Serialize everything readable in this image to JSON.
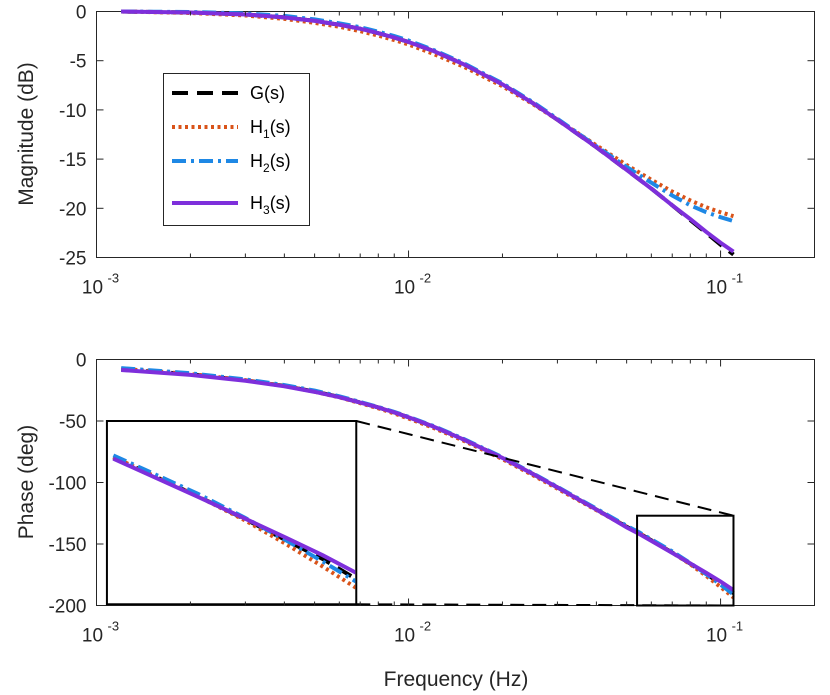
{
  "chart_data": [
    {
      "type": "line",
      "panel": "magnitude",
      "ylabel": "Magnitude (dB)",
      "xscale": "log",
      "xlim": [
        0.001,
        0.2
      ],
      "ylim": [
        -25,
        0
      ],
      "yticks": [
        0,
        -5,
        -10,
        -15,
        -20,
        -25
      ],
      "ytick_labels": [
        "0",
        "-5",
        "-10",
        "-15",
        "-20",
        "-25"
      ],
      "xtick_labels": [
        {
          "base": "10",
          "exp": "-3"
        },
        {
          "base": "10",
          "exp": "-2"
        },
        {
          "base": "10",
          "exp": "-1"
        }
      ],
      "legend": {
        "position": "left",
        "entries": [
          {
            "label": "G(s)",
            "sub": "",
            "suffix": ""
          },
          {
            "label": "H",
            "sub": "1",
            "suffix": "(s)"
          },
          {
            "label": "H",
            "sub": "2",
            "suffix": "(s)"
          },
          {
            "label": "H",
            "sub": "3",
            "suffix": "(s)"
          }
        ]
      },
      "series": [
        {
          "name": "G(s)",
          "color": "#000000",
          "dash": "dash",
          "x": [
            0.0012,
            0.002,
            0.003,
            0.004,
            0.005,
            0.006,
            0.007,
            0.008,
            0.009,
            0.01,
            0.012,
            0.015,
            0.02,
            0.025,
            0.03,
            0.04,
            0.05,
            0.06,
            0.07,
            0.08,
            0.09,
            0.1,
            0.11
          ],
          "y": [
            0,
            -0.1,
            -0.3,
            -0.6,
            -0.95,
            -1.35,
            -1.75,
            -2.2,
            -2.65,
            -3.1,
            -4.0,
            -5.35,
            -7.4,
            -9.3,
            -11.0,
            -13.8,
            -16.1,
            -18.0,
            -19.7,
            -21.2,
            -22.5,
            -23.7,
            -24.7
          ]
        },
        {
          "name": "H1(s)",
          "color": "#D95319",
          "dash": "dot",
          "x": [
            0.0012,
            0.002,
            0.003,
            0.004,
            0.005,
            0.006,
            0.007,
            0.008,
            0.009,
            0.01,
            0.012,
            0.015,
            0.02,
            0.025,
            0.03,
            0.04,
            0.05,
            0.06,
            0.07,
            0.08,
            0.09,
            0.1,
            0.11
          ],
          "y": [
            0,
            -0.15,
            -0.4,
            -0.75,
            -1.15,
            -1.55,
            -2.0,
            -2.45,
            -2.9,
            -3.35,
            -4.3,
            -5.6,
            -7.6,
            -9.4,
            -11.0,
            -13.6,
            -15.6,
            -17.1,
            -18.3,
            -19.2,
            -19.9,
            -20.4,
            -20.8
          ]
        },
        {
          "name": "H2(s)",
          "color": "#1E88E5",
          "dash": "dashdot",
          "x": [
            0.0012,
            0.002,
            0.003,
            0.004,
            0.005,
            0.006,
            0.007,
            0.008,
            0.009,
            0.01,
            0.012,
            0.015,
            0.02,
            0.025,
            0.03,
            0.04,
            0.05,
            0.06,
            0.07,
            0.08,
            0.09,
            0.1,
            0.11
          ],
          "y": [
            0,
            -0.05,
            -0.2,
            -0.45,
            -0.8,
            -1.2,
            -1.6,
            -2.05,
            -2.5,
            -2.95,
            -3.9,
            -5.25,
            -7.3,
            -9.2,
            -10.9,
            -13.7,
            -15.8,
            -17.4,
            -18.7,
            -19.7,
            -20.4,
            -20.9,
            -21.3
          ]
        },
        {
          "name": "H3(s)",
          "color": "#7E2FDB",
          "dash": "solid",
          "x": [
            0.0012,
            0.002,
            0.003,
            0.004,
            0.005,
            0.006,
            0.007,
            0.008,
            0.009,
            0.01,
            0.012,
            0.015,
            0.02,
            0.025,
            0.03,
            0.04,
            0.05,
            0.06,
            0.07,
            0.08,
            0.09,
            0.1,
            0.11
          ],
          "y": [
            0,
            -0.1,
            -0.3,
            -0.6,
            -0.95,
            -1.35,
            -1.75,
            -2.2,
            -2.65,
            -3.1,
            -4.0,
            -5.35,
            -7.4,
            -9.3,
            -11.0,
            -13.8,
            -16.1,
            -18.0,
            -19.7,
            -21.1,
            -22.4,
            -23.5,
            -24.4
          ]
        }
      ]
    },
    {
      "type": "line",
      "panel": "phase",
      "xlabel": "Frequency (Hz)",
      "ylabel": "Phase (deg)",
      "xscale": "log",
      "xlim": [
        0.001,
        0.2
      ],
      "ylim": [
        -200,
        0
      ],
      "yticks": [
        0,
        -50,
        -100,
        -150,
        -200
      ],
      "ytick_labels": [
        "0",
        "-50",
        "-100",
        "-150",
        "-200"
      ],
      "xtick_labels": [
        {
          "base": "10",
          "exp": "-3"
        },
        {
          "base": "10",
          "exp": "-2"
        },
        {
          "base": "10",
          "exp": "-1"
        }
      ],
      "zoom_region": {
        "x": [
          0.054,
          0.11
        ],
        "y": [
          -200,
          -127
        ]
      },
      "inset_region": {
        "x": [
          0.00108,
          0.0068
        ],
        "y": [
          -199,
          -50
        ]
      },
      "series": [
        {
          "name": "G(s)",
          "color": "#000000",
          "dash": "dash",
          "x": [
            0.0012,
            0.002,
            0.003,
            0.004,
            0.005,
            0.006,
            0.007,
            0.008,
            0.009,
            0.01,
            0.012,
            0.015,
            0.02,
            0.025,
            0.03,
            0.04,
            0.05,
            0.055,
            0.06,
            0.07,
            0.08,
            0.09,
            0.1,
            0.11
          ],
          "y": [
            -8,
            -12,
            -17,
            -21.5,
            -26,
            -30.5,
            -35,
            -39,
            -43,
            -47,
            -54.5,
            -65,
            -80,
            -93,
            -104,
            -122,
            -136,
            -141.5,
            -147,
            -157,
            -166,
            -174.5,
            -182,
            -190
          ]
        },
        {
          "name": "H1(s)",
          "color": "#D95319",
          "dash": "dot",
          "x": [
            0.0012,
            0.002,
            0.003,
            0.004,
            0.005,
            0.006,
            0.007,
            0.008,
            0.009,
            0.01,
            0.012,
            0.015,
            0.02,
            0.025,
            0.03,
            0.04,
            0.05,
            0.055,
            0.06,
            0.07,
            0.08,
            0.09,
            0.1,
            0.11
          ],
          "y": [
            -7.5,
            -11.8,
            -16.8,
            -21.5,
            -26.2,
            -30.8,
            -35.5,
            -39.7,
            -43.9,
            -48,
            -55.5,
            -66,
            -81,
            -94,
            -105,
            -122.5,
            -136,
            -141.3,
            -147,
            -157,
            -166.5,
            -176,
            -185,
            -193.5
          ]
        },
        {
          "name": "H2(s)",
          "color": "#1E88E5",
          "dash": "dashdot",
          "x": [
            0.0012,
            0.002,
            0.003,
            0.004,
            0.005,
            0.006,
            0.007,
            0.008,
            0.009,
            0.01,
            0.012,
            0.015,
            0.02,
            0.025,
            0.03,
            0.04,
            0.05,
            0.055,
            0.06,
            0.07,
            0.08,
            0.09,
            0.1,
            0.11
          ],
          "y": [
            -7,
            -11.2,
            -16.2,
            -20.8,
            -25.3,
            -29.9,
            -34.5,
            -38.6,
            -42.6,
            -46.6,
            -54,
            -64.5,
            -79.5,
            -92.5,
            -103.5,
            -121.3,
            -135.2,
            -140.7,
            -146.2,
            -156,
            -165.5,
            -174.5,
            -183,
            -191
          ]
        },
        {
          "name": "H3(s)",
          "color": "#7E2FDB",
          "dash": "solid",
          "x": [
            0.0012,
            0.002,
            0.003,
            0.004,
            0.005,
            0.006,
            0.007,
            0.008,
            0.009,
            0.01,
            0.012,
            0.015,
            0.02,
            0.025,
            0.03,
            0.04,
            0.05,
            0.055,
            0.06,
            0.07,
            0.08,
            0.09,
            0.1,
            0.11
          ],
          "y": [
            -8.5,
            -12.5,
            -17.3,
            -21.8,
            -26.3,
            -30.6,
            -35,
            -39,
            -43,
            -47,
            -54.5,
            -65,
            -80,
            -93,
            -104,
            -122,
            -136.5,
            -142,
            -147.5,
            -157.2,
            -165.8,
            -173.5,
            -180.5,
            -187.5
          ]
        }
      ]
    }
  ]
}
